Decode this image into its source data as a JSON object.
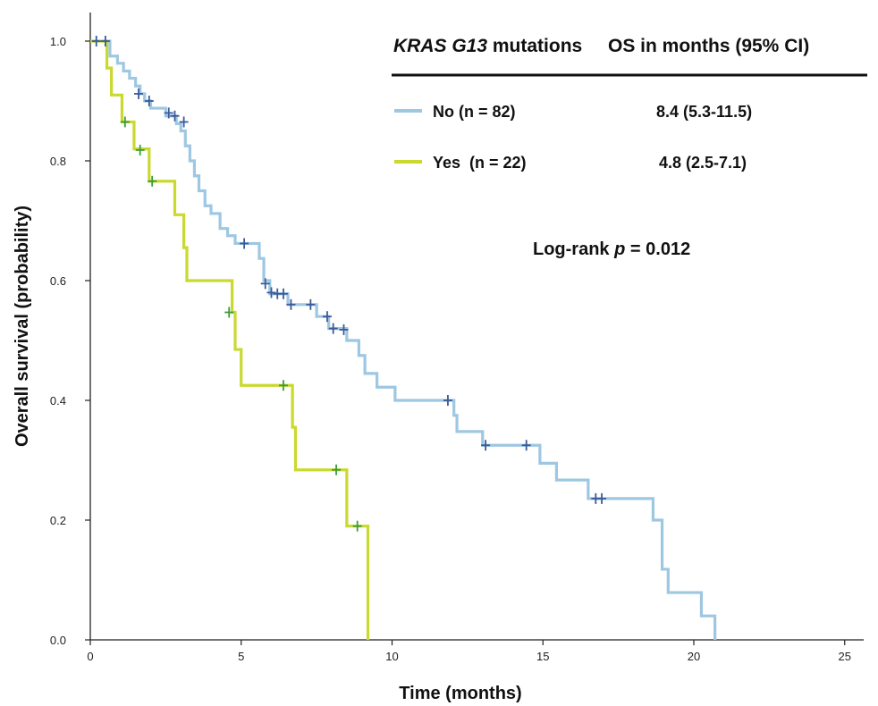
{
  "chart_data": {
    "type": "line",
    "step": true,
    "xlabel": "Time (months)",
    "ylabel": "Overall survival (probability)",
    "xlim": [
      0,
      26
    ],
    "ylim": [
      0,
      1.08
    ],
    "x_ticks": [
      0,
      5,
      10,
      15,
      20,
      25
    ],
    "x_tick_labels": [
      "0",
      "5",
      "10",
      "15",
      "20",
      "25"
    ],
    "y_ticks": [
      0,
      0.2,
      0.4,
      0.6,
      0.8,
      1.0
    ],
    "y_tick_labels": [
      "0.0",
      "0.2",
      "0.4",
      "0.6",
      "0.8",
      "1.0"
    ],
    "grid": false,
    "legend": {
      "position": "top-right",
      "header_italic": "KRAS G13",
      "header_rest": " mutations",
      "header_right": "OS in months (95% CI)"
    },
    "annotation": {
      "prefix": "Log-rank ",
      "p": "p",
      "suffix": " = 0.012"
    },
    "series": [
      {
        "name": "No (n = 82)",
        "os": "8.4 (5.3-11.5)",
        "color": "#9ec7e2",
        "censor_color": "#3a5a9a",
        "steps": [
          [
            0,
            1.0
          ],
          [
            0.65,
            0.975
          ],
          [
            0.9,
            0.963
          ],
          [
            1.1,
            0.95
          ],
          [
            1.3,
            0.938
          ],
          [
            1.5,
            0.925
          ],
          [
            1.65,
            0.912
          ],
          [
            1.8,
            0.9
          ],
          [
            2.0,
            0.888
          ],
          [
            2.5,
            0.875
          ],
          [
            2.85,
            0.862
          ],
          [
            3.0,
            0.85
          ],
          [
            3.15,
            0.825
          ],
          [
            3.3,
            0.8
          ],
          [
            3.45,
            0.775
          ],
          [
            3.6,
            0.75
          ],
          [
            3.8,
            0.725
          ],
          [
            4.0,
            0.712
          ],
          [
            4.3,
            0.687
          ],
          [
            4.55,
            0.675
          ],
          [
            4.8,
            0.662
          ],
          [
            5.6,
            0.637
          ],
          [
            5.75,
            0.6
          ],
          [
            5.95,
            0.578
          ],
          [
            6.55,
            0.56
          ],
          [
            7.5,
            0.54
          ],
          [
            7.9,
            0.52
          ],
          [
            8.5,
            0.5
          ],
          [
            8.9,
            0.475
          ],
          [
            9.1,
            0.445
          ],
          [
            9.5,
            0.422
          ],
          [
            10.1,
            0.4
          ],
          [
            12.05,
            0.375
          ],
          [
            12.15,
            0.348
          ],
          [
            13.0,
            0.325
          ],
          [
            14.9,
            0.295
          ],
          [
            15.45,
            0.267
          ],
          [
            16.5,
            0.236
          ],
          [
            18.65,
            0.2
          ],
          [
            18.95,
            0.118
          ],
          [
            19.15,
            0.079
          ],
          [
            20.25,
            0.04
          ],
          [
            20.7,
            0.0
          ]
        ],
        "end_x": 20.7,
        "censors": [
          [
            0.2,
            1.0
          ],
          [
            0.5,
            1.0
          ],
          [
            1.6,
            0.912
          ],
          [
            1.95,
            0.9
          ],
          [
            2.6,
            0.88
          ],
          [
            2.8,
            0.875
          ],
          [
            3.1,
            0.865
          ],
          [
            5.1,
            0.662
          ],
          [
            5.8,
            0.595
          ],
          [
            6.0,
            0.58
          ],
          [
            6.2,
            0.578
          ],
          [
            6.4,
            0.578
          ],
          [
            6.65,
            0.56
          ],
          [
            7.3,
            0.56
          ],
          [
            7.85,
            0.54
          ],
          [
            8.05,
            0.52
          ],
          [
            8.4,
            0.518
          ],
          [
            11.85,
            0.4
          ],
          [
            13.1,
            0.325
          ],
          [
            14.45,
            0.325
          ],
          [
            16.75,
            0.236
          ],
          [
            16.95,
            0.236
          ]
        ]
      },
      {
        "name": "Yes  (n = 22)",
        "os": "4.8 (2.5-7.1)",
        "color": "#c9d92e",
        "censor_color": "#3d9c3a",
        "steps": [
          [
            0,
            1.0
          ],
          [
            0.55,
            0.955
          ],
          [
            0.7,
            0.91
          ],
          [
            1.05,
            0.865
          ],
          [
            1.45,
            0.82
          ],
          [
            1.95,
            0.766
          ],
          [
            2.8,
            0.71
          ],
          [
            3.1,
            0.655
          ],
          [
            3.2,
            0.6
          ],
          [
            4.7,
            0.547
          ],
          [
            4.8,
            0.485
          ],
          [
            5.0,
            0.425
          ],
          [
            6.7,
            0.355
          ],
          [
            6.8,
            0.284
          ],
          [
            8.5,
            0.19
          ],
          [
            9.2,
            0.0
          ]
        ],
        "end_x": 9.2,
        "censors": [
          [
            1.15,
            0.865
          ],
          [
            1.65,
            0.818
          ],
          [
            2.05,
            0.766
          ],
          [
            4.6,
            0.547
          ],
          [
            6.4,
            0.425
          ],
          [
            8.15,
            0.284
          ],
          [
            8.85,
            0.19
          ]
        ]
      }
    ]
  }
}
